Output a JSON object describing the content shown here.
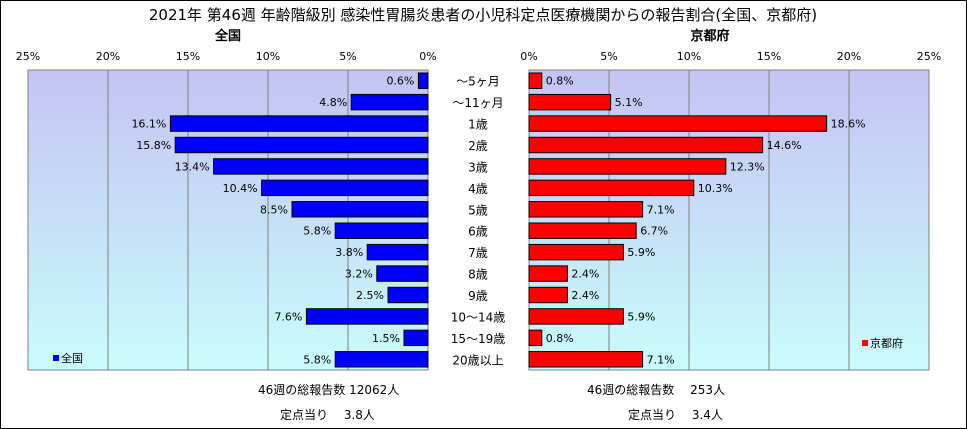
{
  "title": "2021年 第46週 年齢階級別 感染性胃腸炎患者の小児科定点医療機関からの報告割合(全国、京都府)",
  "categories": [
    "～5ヶ月",
    "～11ヶ月",
    "1歳",
    "2歳",
    "3歳",
    "4歳",
    "5歳",
    "6歳",
    "7歳",
    "8歳",
    "9歳",
    "10～14歳",
    "15～19歳",
    "20歳以上"
  ],
  "panels": {
    "left": {
      "title": "全国",
      "legend": "全国",
      "ticks": [
        "25%",
        "20%",
        "15%",
        "10%",
        "5%",
        "0%"
      ],
      "color": "#0000ff",
      "gradient_top": "#c4c4f2",
      "gradient_bottom": "#c8fcfc"
    },
    "right": {
      "title": "京都府",
      "legend": "京都府",
      "ticks": [
        "0%",
        "5%",
        "10%",
        "15%",
        "20%",
        "25%"
      ],
      "color": "#ff0000",
      "gradient_top": "#c4c4f2",
      "gradient_bottom": "#c8fcfc"
    }
  },
  "notes": {
    "left_total": "46週の総報告数 12062人",
    "left_per": "定点当り　 3.8人",
    "right_total": "46週の総報告数　 253人",
    "right_per": "定点当り　 3.4人"
  },
  "chart_data": [
    {
      "type": "bar",
      "orientation": "horizontal",
      "title": "全国",
      "categories": [
        "～5ヶ月",
        "～11ヶ月",
        "1歳",
        "2歳",
        "3歳",
        "4歳",
        "5歳",
        "6歳",
        "7歳",
        "8歳",
        "9歳",
        "10～14歳",
        "15～19歳",
        "20歳以上"
      ],
      "series": [
        {
          "name": "全国",
          "values": [
            0.6,
            4.8,
            16.1,
            15.8,
            13.4,
            10.4,
            8.5,
            5.8,
            3.8,
            3.2,
            2.5,
            7.6,
            1.5,
            5.8
          ]
        }
      ],
      "data_labels": [
        "0.6%",
        "4.8%",
        "16.1%",
        "15.8%",
        "13.4%",
        "10.4%",
        "8.5%",
        "5.8%",
        "3.8%",
        "3.2%",
        "2.5%",
        "7.6%",
        "1.5%",
        "5.8%"
      ],
      "xlim": [
        0,
        25
      ],
      "x_reversed": true,
      "grid": true,
      "legend_position": "bottom-left"
    },
    {
      "type": "bar",
      "orientation": "horizontal",
      "title": "京都府",
      "categories": [
        "～5ヶ月",
        "～11ヶ月",
        "1歳",
        "2歳",
        "3歳",
        "4歳",
        "5歳",
        "6歳",
        "7歳",
        "8歳",
        "9歳",
        "10～14歳",
        "15～19歳",
        "20歳以上"
      ],
      "series": [
        {
          "name": "京都府",
          "values": [
            0.8,
            5.1,
            18.6,
            14.6,
            12.3,
            10.3,
            7.1,
            6.7,
            5.9,
            2.4,
            2.4,
            5.9,
            0.8,
            7.1
          ]
        }
      ],
      "data_labels": [
        "0.8%",
        "5.1%",
        "18.6%",
        "14.6%",
        "12.3%",
        "10.3%",
        "7.1%",
        "6.7%",
        "5.9%",
        "2.4%",
        "2.4%",
        "5.9%",
        "0.8%",
        "7.1%"
      ],
      "xlim": [
        0,
        25
      ],
      "x_reversed": false,
      "grid": true,
      "legend_position": "bottom-right"
    }
  ]
}
